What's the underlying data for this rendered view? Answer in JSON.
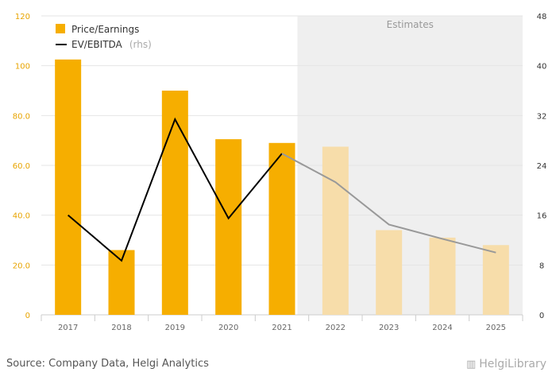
{
  "chart_data": {
    "type": "bar",
    "categories": [
      "2017",
      "2018",
      "2019",
      "2020",
      "2021",
      "2022",
      "2023",
      "2024",
      "2025"
    ],
    "estimate_start_index": 5,
    "series": [
      {
        "name": "Price/Earnings",
        "kind": "bar",
        "axis": "left",
        "values": [
          102.5,
          26,
          90,
          70.5,
          69,
          67.5,
          34,
          31,
          28
        ]
      },
      {
        "name": "EV/EBITDA",
        "name_suffix": "(rhs)",
        "kind": "line",
        "axis": "right",
        "values": [
          16,
          8.7,
          31.4,
          15.5,
          25.9,
          21.3,
          14.5,
          12.2,
          10
        ]
      }
    ],
    "ylim_left": [
      0,
      120
    ],
    "ylim_right": [
      0,
      48
    ],
    "yticks_left": [
      "0",
      "20.0",
      "40.0",
      "60.0",
      "80.0",
      "100",
      "120"
    ],
    "yticks_right": [
      "0",
      "8",
      "16",
      "24",
      "32",
      "40",
      "48"
    ],
    "shaded_region_label": "Estimates",
    "grid": true,
    "legend": "top-left",
    "colors": {
      "bar": "#f6ae00",
      "bar_estimate": "#f7ddaa",
      "line": "#000000",
      "line_estimate": "#999999",
      "shade": "#efefef"
    }
  },
  "footer": {
    "source": "Source: Company Data, Helgi Analytics",
    "brand": "HelgiLibrary"
  }
}
